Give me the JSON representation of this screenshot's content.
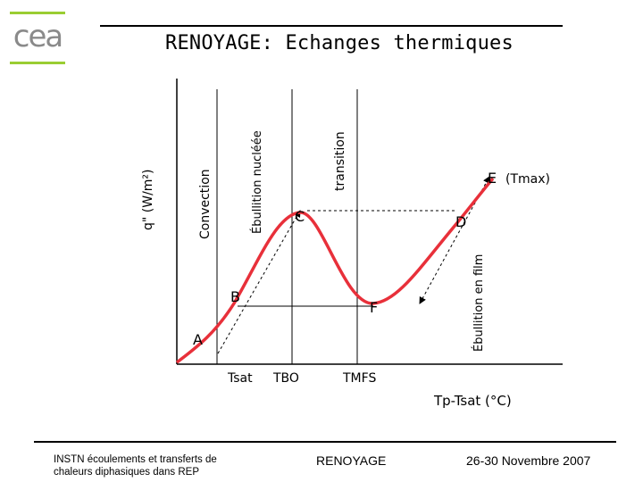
{
  "logo": {
    "text": "cea",
    "accent": "#9acd32"
  },
  "title": "RENOYAGE: Echanges thermiques",
  "axes": {
    "y_label": "q\" (W/m²)",
    "x_label": "Tp-Tsat (°C)"
  },
  "regions": {
    "convection": "Convection",
    "nucleate": "Ébullition nucléée",
    "transition": "transition",
    "film": "Ébullition en film"
  },
  "points": {
    "A": "A",
    "B": "B",
    "C": "C",
    "D": "D",
    "E": "E",
    "E_note": "(Tmax)",
    "F": "F"
  },
  "x_ticks": {
    "tsat": "Tsat",
    "tbo": "TBO",
    "tmfs": "TMFS"
  },
  "colors": {
    "curve": "#e8303a",
    "axis": "#000000"
  },
  "footer": {
    "left_line1": "INSTN écoulements et transferts de",
    "left_line2": "chaleurs diphasiques dans REP",
    "center": "RENOYAGE",
    "right": "26-30 Novembre 2007"
  }
}
